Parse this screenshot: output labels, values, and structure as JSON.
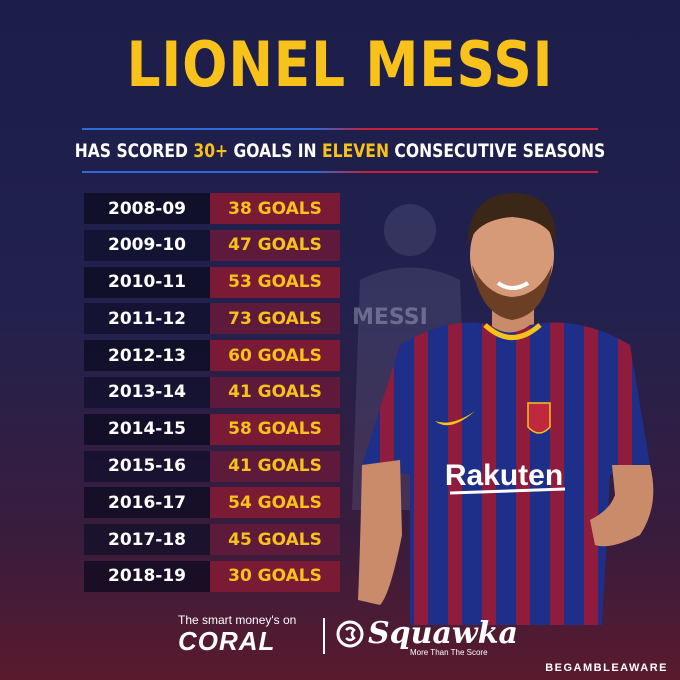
{
  "title": "LIONEL MESSI",
  "subtitle": {
    "part1": "HAS SCORED ",
    "highlight1": "30+",
    "part2": " GOALS IN ",
    "highlight2": "ELEVEN",
    "part3": " CONSECUTIVE SEASONS"
  },
  "seasons": [
    {
      "season": "2008-09",
      "goals": "38 GOALS"
    },
    {
      "season": "2009-10",
      "goals": "47 GOALS"
    },
    {
      "season": "2010-11",
      "goals": "53 GOALS"
    },
    {
      "season": "2011-12",
      "goals": "73 GOALS"
    },
    {
      "season": "2012-13",
      "goals": "60 GOALS"
    },
    {
      "season": "2013-14",
      "goals": "41 GOALS"
    },
    {
      "season": "2014-15",
      "goals": "58 GOALS"
    },
    {
      "season": "2015-16",
      "goals": "41 GOALS"
    },
    {
      "season": "2016-17",
      "goals": "54 GOALS"
    },
    {
      "season": "2017-18",
      "goals": "45 GOALS"
    },
    {
      "season": "2018-19",
      "goals": "30 GOALS"
    }
  ],
  "background_shirt_text": "MESSI",
  "shirt_sponsor": "Rakuten",
  "footer": {
    "sponsor_line": "The smart money's on",
    "coral": "CORAL",
    "squawka": "Squawka",
    "tagline": "More Than The Score",
    "begambleaware": "BEGAMBLEAWARE"
  },
  "colors": {
    "accent_gold": "#f8c21a",
    "goals_cell": "#7a1a34",
    "season_cell": "#0a0a1e",
    "background_top": "#1c1d4a",
    "background_bottom": "#5a1a2e"
  }
}
